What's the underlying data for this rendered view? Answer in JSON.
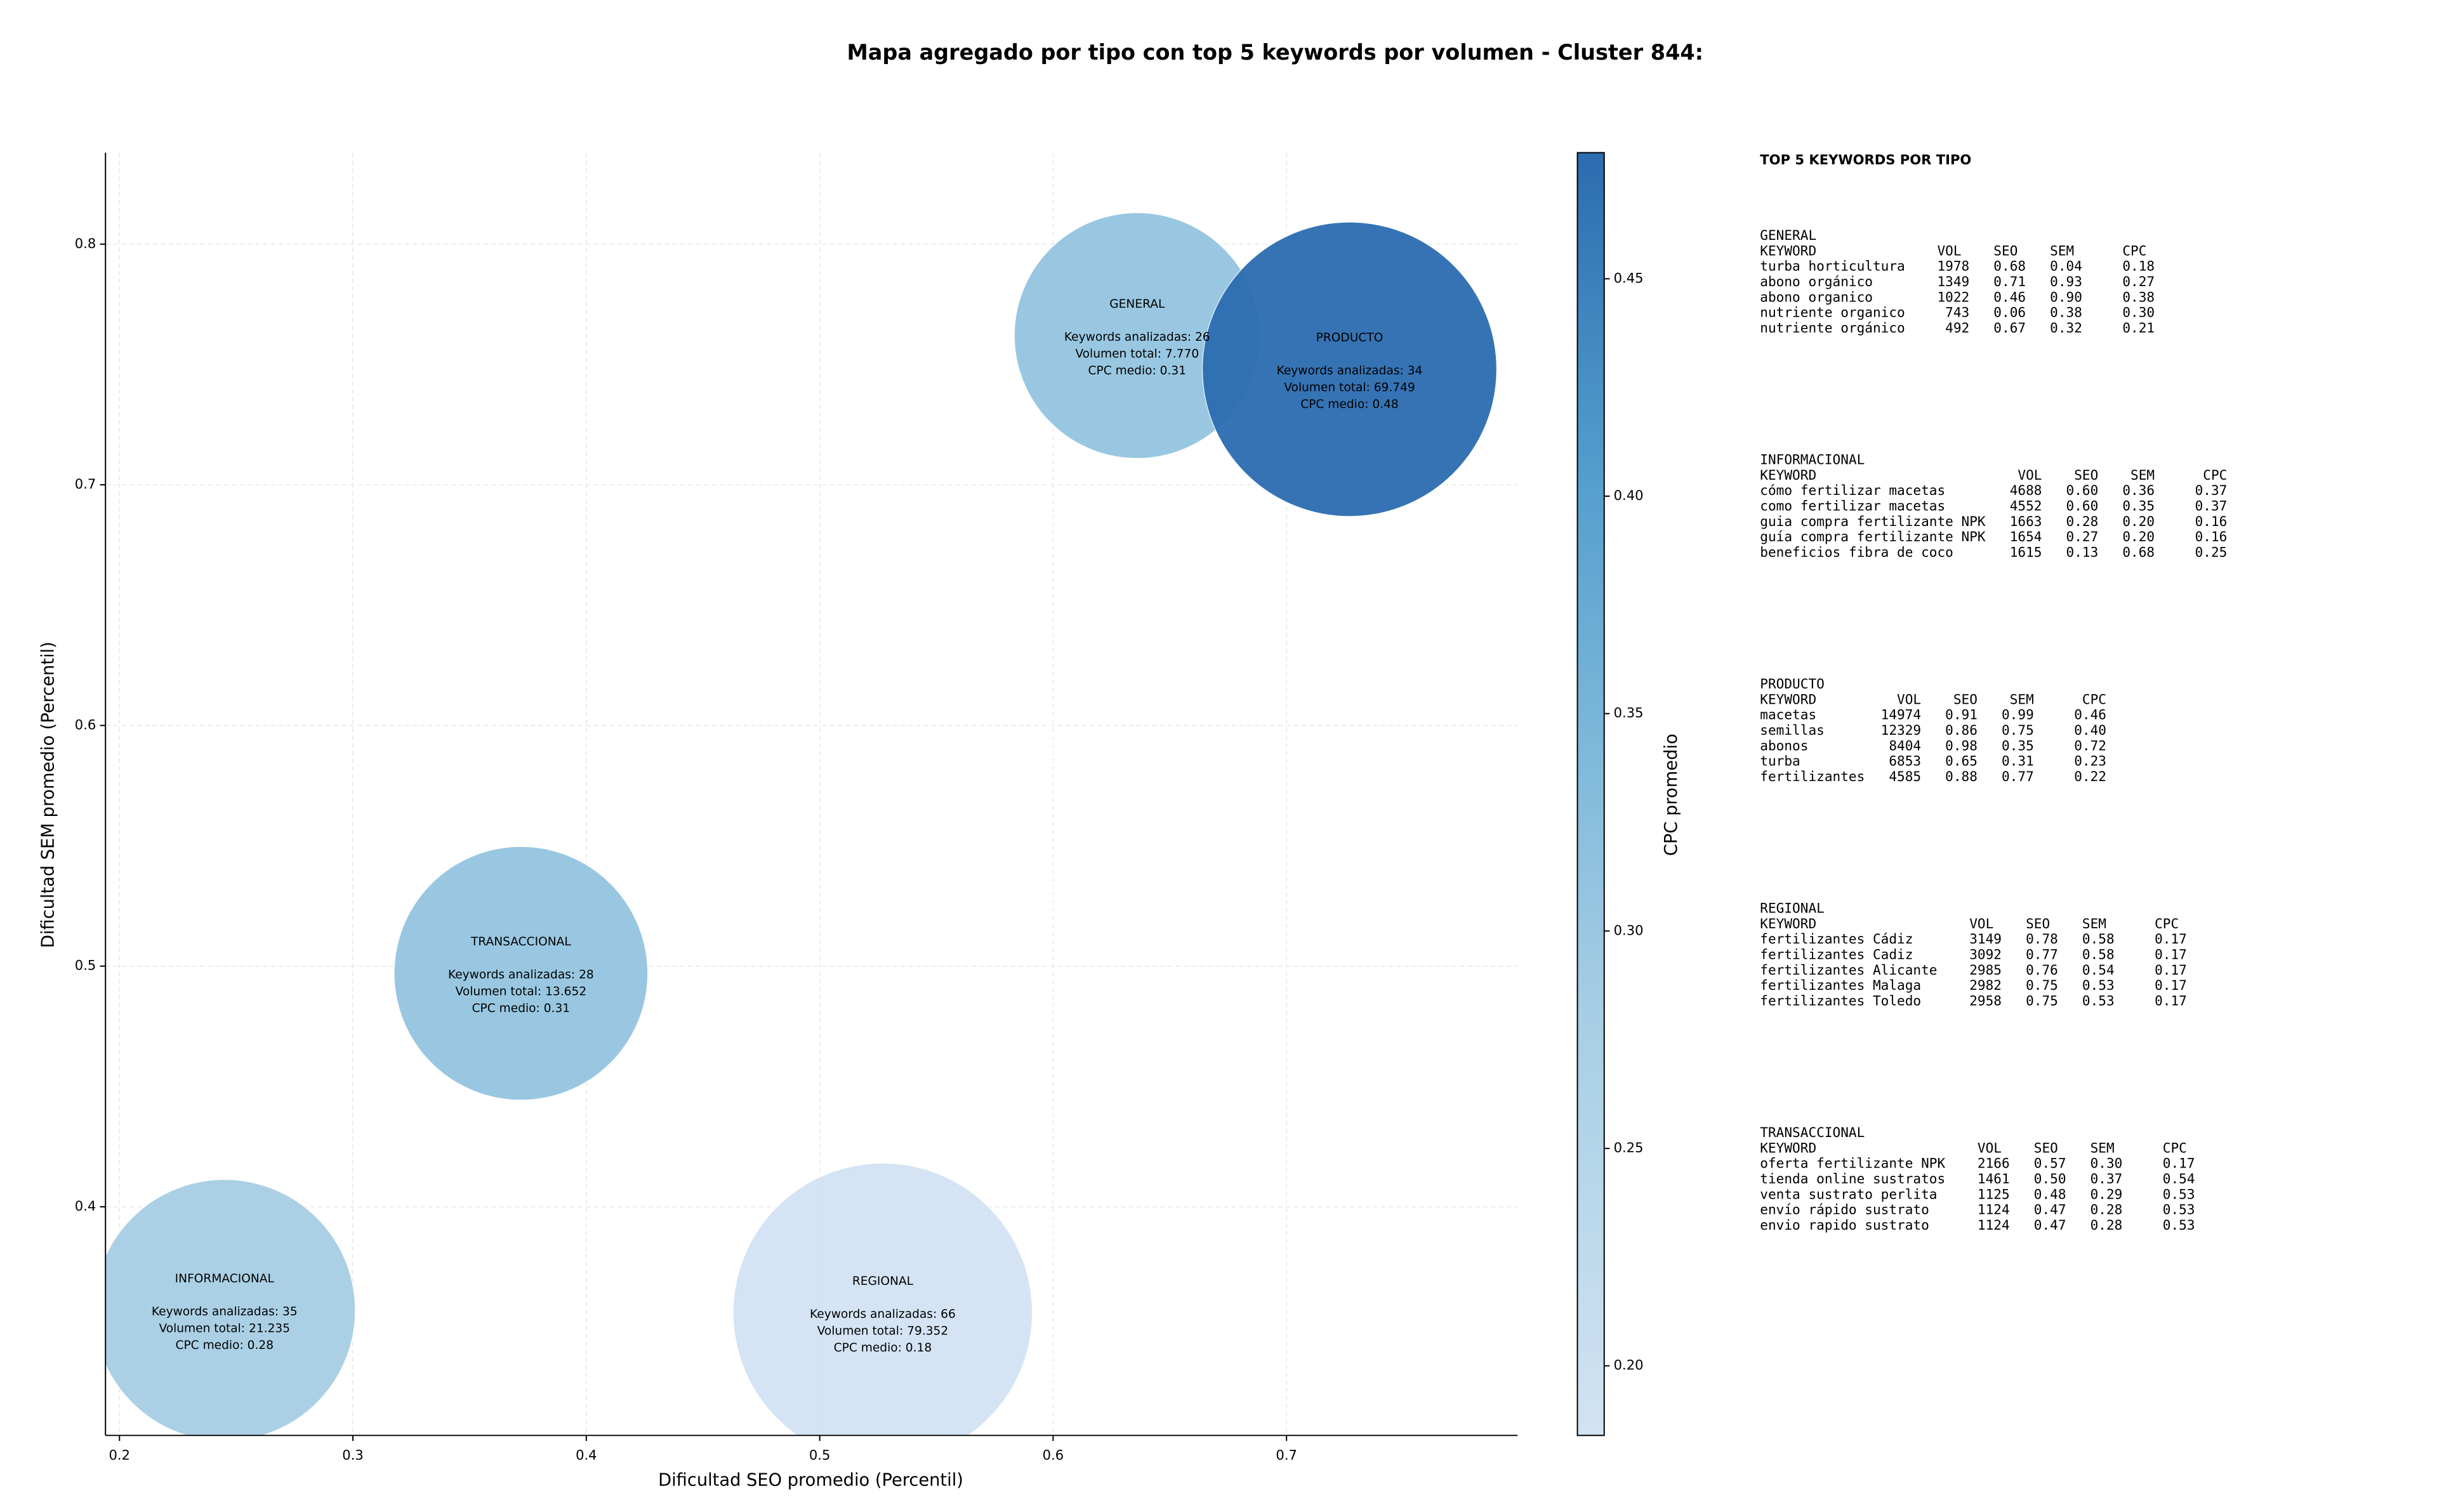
{
  "chart_data": {
    "type": "bubble",
    "title": "Mapa agregado por tipo con top 5 keywords por volumen - Cluster 844:",
    "x_label": "Dificultad SEO promedio (Percentil)",
    "y_label": "Dificultad SEM promedio (Percentil)",
    "colorbar_label": "CPC promedio",
    "xlim": [
      0.194,
      0.799
    ],
    "xticks": [
      0.2,
      0.3,
      0.4,
      0.5,
      0.6,
      0.7
    ],
    "ylim": [
      0.305,
      0.838
    ],
    "yticks": [
      0.4,
      0.5,
      0.6,
      0.7,
      0.8
    ],
    "clim": [
      0.184,
      0.479
    ],
    "cticks": [
      {
        "value": 0.2,
        "label": "0.20"
      },
      0.25,
      {
        "value": 0.3,
        "label": "0.30"
      },
      0.35,
      {
        "value": 0.4,
        "label": "0.40"
      },
      0.45
    ],
    "grid": true,
    "points": [
      {
        "name": "GENERAL",
        "x": 0.636,
        "y": 0.762,
        "volume": 7770,
        "cpc": 0.31,
        "labels": [
          "Keywords analizadas: 26",
          "Volumen total: 7.770",
          "CPC medio: 0.31"
        ]
      },
      {
        "name": "PRODUCTO",
        "x": 0.727,
        "y": 0.748,
        "volume": 69749,
        "cpc": 0.48,
        "labels": [
          "Keywords analizadas: 34",
          "Volumen total: 69.749",
          "CPC medio: 0.48"
        ]
      },
      {
        "name": "TRANSACCIONAL",
        "x": 0.372,
        "y": 0.497,
        "volume": 13652,
        "cpc": 0.31,
        "labels": [
          "Keywords analizadas: 28",
          "Volumen total: 13.652",
          "CPC medio: 0.31"
        ]
      },
      {
        "name": "INFORMACIONAL",
        "x": 0.245,
        "y": 0.357,
        "volume": 21235,
        "cpc": 0.28,
        "labels": [
          "Keywords analizadas: 35",
          "Volumen total: 21.235",
          "CPC medio: 0.28"
        ]
      },
      {
        "name": "REGIONAL",
        "x": 0.527,
        "y": 0.356,
        "volume": 79352,
        "cpc": 0.18,
        "labels": [
          "Keywords analizadas: 66",
          "Volumen total: 79.352",
          "CPC medio: 0.18"
        ]
      }
    ],
    "panel": {
      "title": "TOP 5 KEYWORDS POR TIPO",
      "blocks": [
        {
          "name": "GENERAL",
          "lines": [
            "KEYWORD               VOL    SEO    SEM      CPC",
            "turba horticultura    1978   0.68   0.04     0.18",
            "abono orgánico        1349   0.71   0.93     0.27",
            "abono organico        1022   0.46   0.90     0.38",
            "nutriente organico     743   0.06   0.38     0.30",
            "nutriente orgánico     492   0.67   0.32     0.21"
          ]
        },
        {
          "name": "INFORMACIONAL",
          "lines": [
            "KEYWORD                         VOL    SEO    SEM      CPC",
            "cómo fertilizar macetas        4688   0.60   0.36     0.37",
            "como fertilizar macetas        4552   0.60   0.35     0.37",
            "guia compra fertilizante NPK   1663   0.28   0.20     0.16",
            "guía compra fertilizante NPK   1654   0.27   0.20     0.16",
            "beneficios fibra de coco       1615   0.13   0.68     0.25"
          ]
        },
        {
          "name": "PRODUCTO",
          "lines": [
            "KEYWORD          VOL    SEO    SEM      CPC",
            "macetas        14974   0.91   0.99     0.46",
            "semillas       12329   0.86   0.75     0.40",
            "abonos          8404   0.98   0.35     0.72",
            "turba           6853   0.65   0.31     0.23",
            "fertilizantes   4585   0.88   0.77     0.22"
          ]
        },
        {
          "name": "REGIONAL",
          "lines": [
            "KEYWORD                   VOL    SEO    SEM      CPC",
            "fertilizantes Cádiz       3149   0.78   0.58     0.17",
            "fertilizantes Cadiz       3092   0.77   0.58     0.17",
            "fertilizantes Alicante    2985   0.76   0.54     0.17",
            "fertilizantes Malaga      2982   0.75   0.53     0.17",
            "fertilizantes Toledo      2958   0.75   0.53     0.17"
          ]
        },
        {
          "name": "TRANSACCIONAL",
          "lines": [
            "KEYWORD                    VOL    SEO    SEM      CPC",
            "oferta fertilizante NPK    2166   0.57   0.30     0.17",
            "tienda online sustratos    1461   0.50   0.37     0.54",
            "venta sustrato perlita     1125   0.48   0.29     0.53",
            "envío rápido sustrato      1124   0.47   0.28     0.53",
            "envio rapido sustrato      1124   0.47   0.28     0.53"
          ]
        }
      ]
    }
  }
}
